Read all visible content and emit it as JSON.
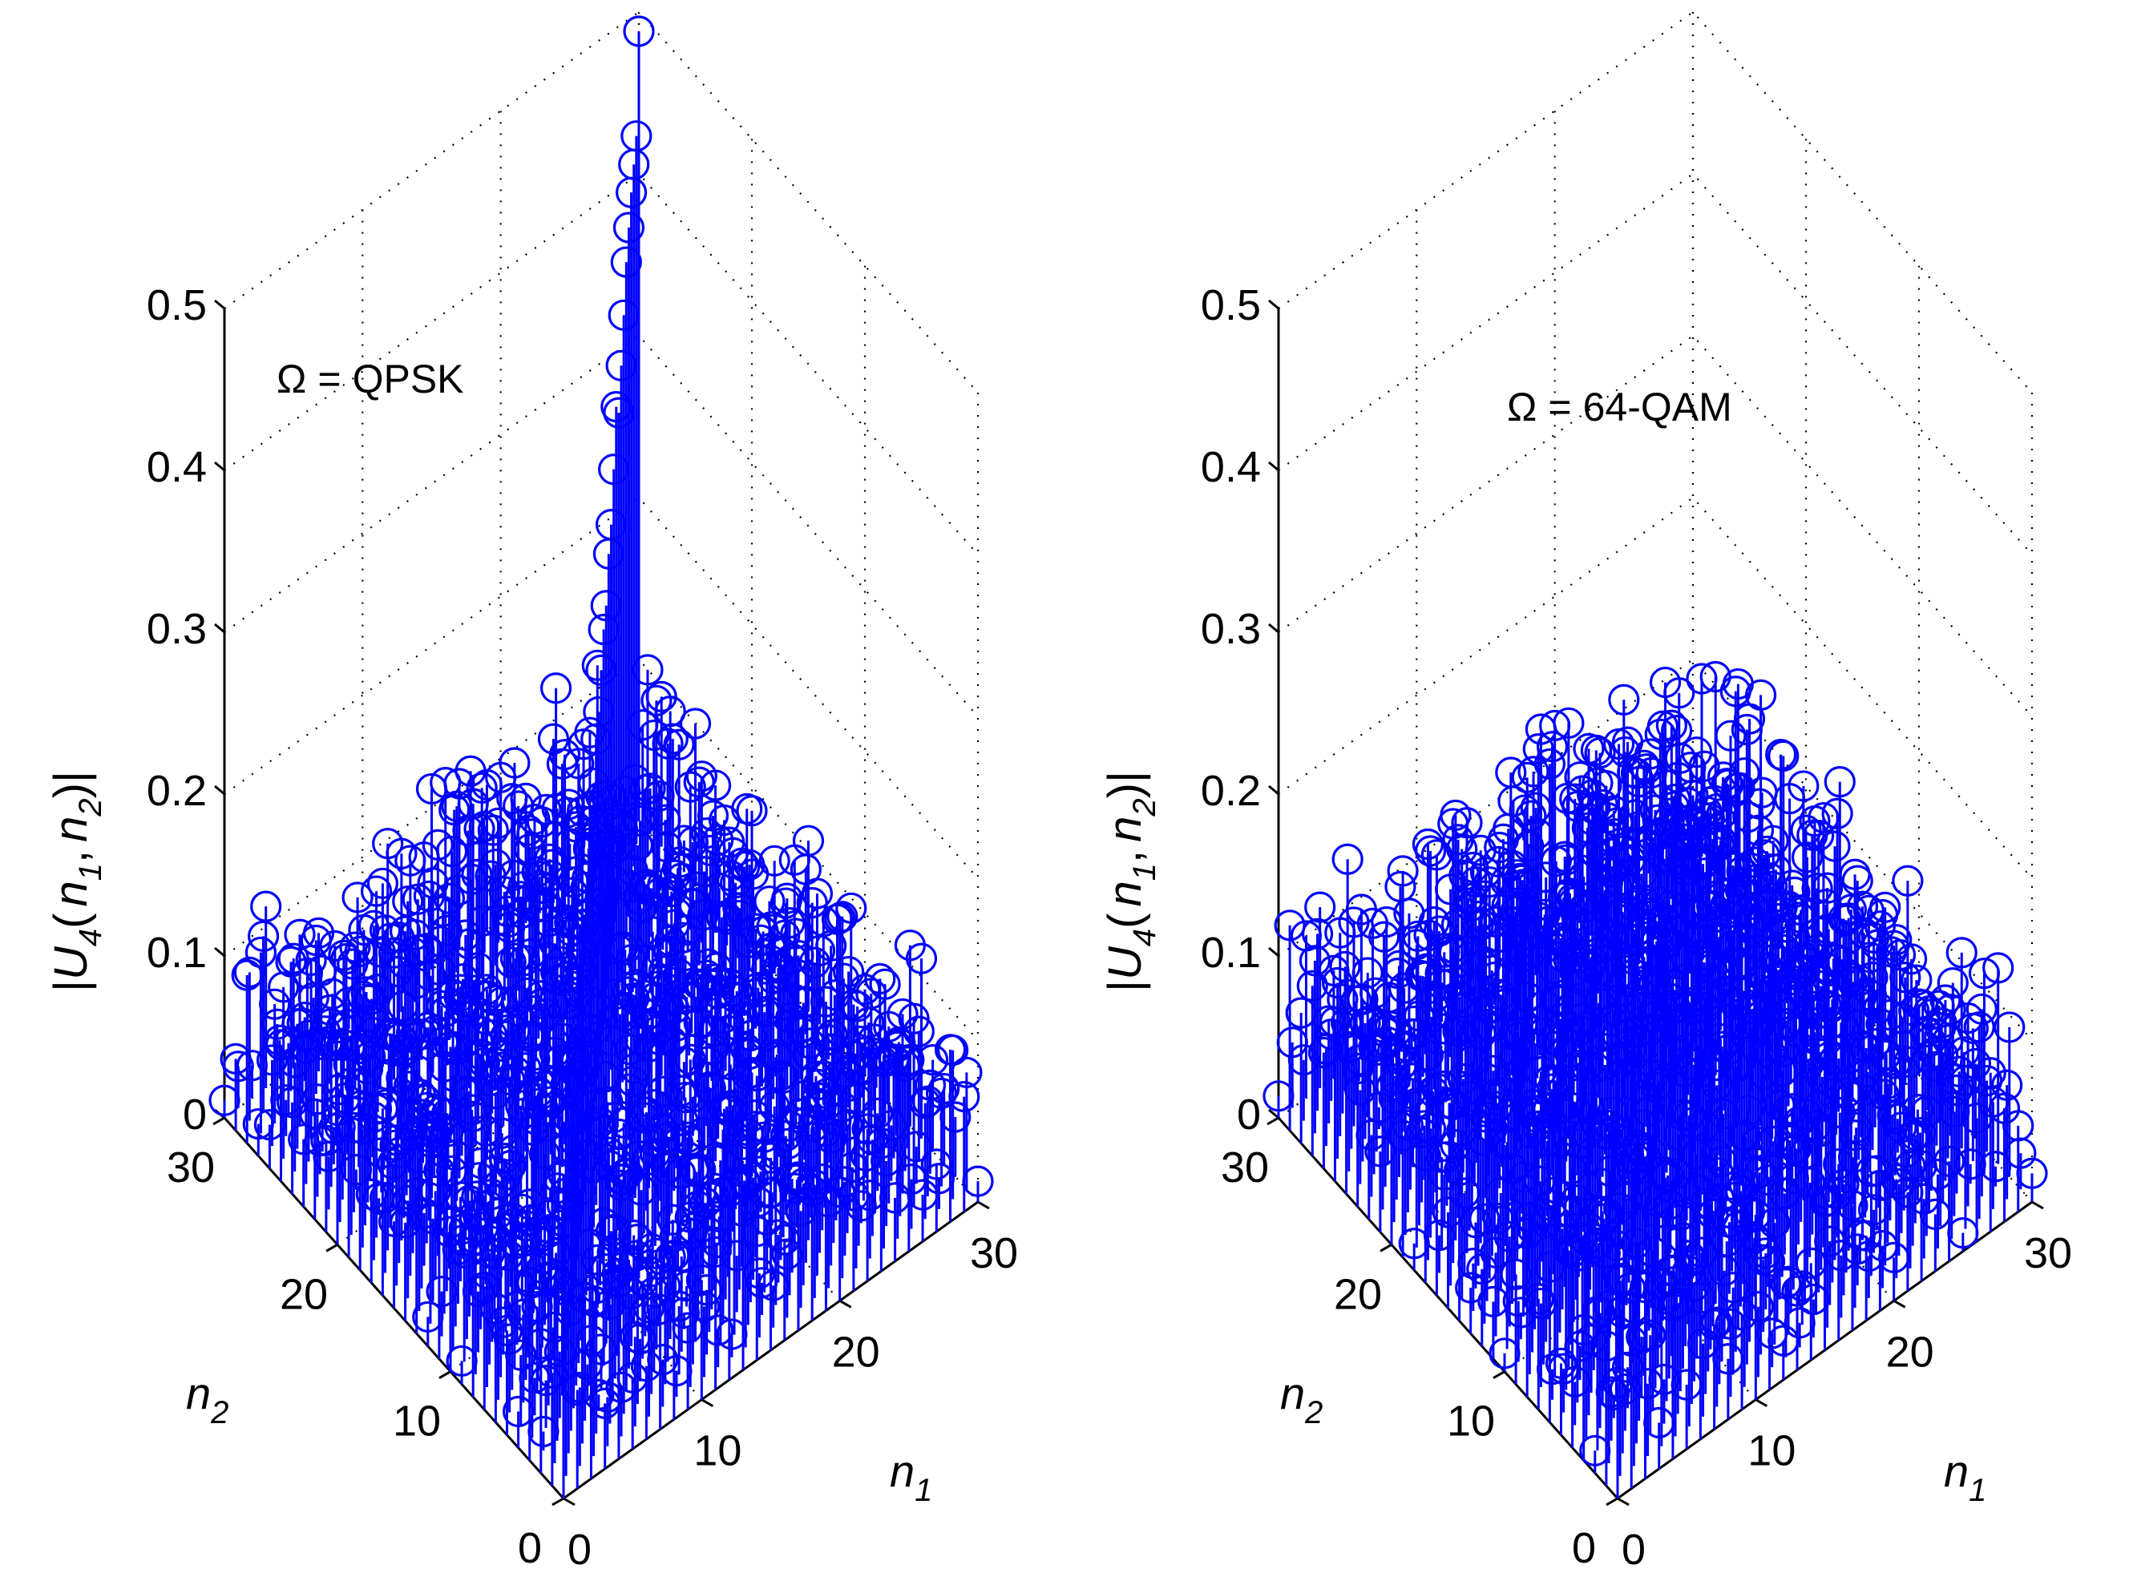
{
  "chart_data": [
    {
      "type": "stem3d",
      "title": "",
      "annotation": {
        "symbol": "Ω",
        "equals": "=",
        "value": "QPSK"
      },
      "xlabel": {
        "var": "n",
        "sub": "1"
      },
      "ylabel": {
        "var": "n",
        "sub": "2"
      },
      "zlabel": {
        "prefix": "|",
        "var": "U",
        "sub": "4",
        "open": "(",
        "arg1": "n",
        "arg1_sub": "1",
        "comma": ",",
        "arg2": "n",
        "arg2_sub": "2",
        "close": ")|"
      },
      "xlim": [
        0,
        30
      ],
      "ylim": [
        0,
        30
      ],
      "zlim": [
        0,
        0.5
      ],
      "xticks": [
        0,
        10,
        20,
        30
      ],
      "xtick_labels": [
        "0",
        "10",
        "20",
        "30"
      ],
      "yticks": [
        0,
        10,
        20,
        30
      ],
      "ytick_labels": [
        "0",
        "10",
        "20",
        "30"
      ],
      "zticks": [
        0,
        0.1,
        0.2,
        0.3,
        0.4,
        0.5
      ],
      "ztick_labels": [
        "0",
        "0.1",
        "0.2",
        "0.3",
        "0.4",
        "0.5"
      ],
      "grid": true,
      "marker": "circle",
      "color": "#0000ff",
      "grid_n": 31,
      "surface": {
        "base": 0.065,
        "random_amp": 0.055,
        "ridge": {
          "present": true,
          "peak": 0.5,
          "along": "n1=n2",
          "width": 0.9,
          "decay": 1.35,
          "floor": 0.2
        }
      }
    },
    {
      "type": "stem3d",
      "title": "",
      "annotation": {
        "symbol": "Ω",
        "equals": "=",
        "value": "64-QAM"
      },
      "xlabel": {
        "var": "n",
        "sub": "1"
      },
      "ylabel": {
        "var": "n",
        "sub": "2"
      },
      "zlabel": {
        "prefix": "|",
        "var": "U",
        "sub": "4",
        "open": "(",
        "arg1": "n",
        "arg1_sub": "1",
        "comma": ",",
        "arg2": "n",
        "arg2_sub": "2",
        "close": ")|"
      },
      "xlim": [
        0,
        30
      ],
      "ylim": [
        0,
        30
      ],
      "zlim": [
        0,
        0.5
      ],
      "xticks": [
        0,
        10,
        20,
        30
      ],
      "xtick_labels": [
        "0",
        "10",
        "20",
        "30"
      ],
      "yticks": [
        0,
        10,
        20,
        30
      ],
      "ytick_labels": [
        "0",
        "10",
        "20",
        "30"
      ],
      "zticks": [
        0,
        0.1,
        0.2,
        0.3,
        0.4,
        0.5
      ],
      "ztick_labels": [
        "0",
        "0.1",
        "0.2",
        "0.3",
        "0.4",
        "0.5"
      ],
      "grid": true,
      "marker": "circle",
      "color": "#0000ff",
      "grid_n": 31,
      "surface": {
        "base": 0.07,
        "random_amp": 0.06,
        "center_bump": 0.05,
        "ridge": {
          "present": false
        }
      }
    }
  ]
}
